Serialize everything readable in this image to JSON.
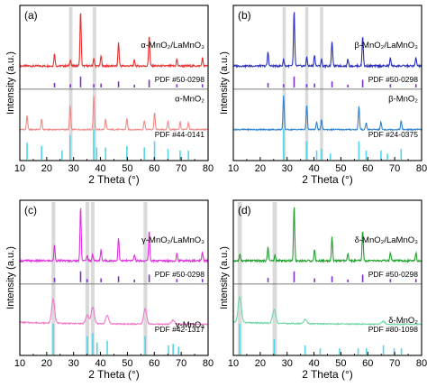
{
  "chart_data": [
    {
      "panel": "(a)",
      "type": "line",
      "xlabel": "2 Theta (°)",
      "ylabel": "Intensity (a.u.)",
      "xlim": [
        10,
        80
      ],
      "xticks": [
        "10",
        "20",
        "30",
        "40",
        "50",
        "60",
        "70",
        "80"
      ],
      "highlight_bands": [
        [
          28.3,
          29.6
        ],
        [
          37.1,
          38.4
        ]
      ],
      "series": [
        {
          "name": "α-MnO₂/LaMnO₃",
          "color": "#e8312f",
          "role": "top",
          "peaks": [
            [
              22.9,
              0.22
            ],
            [
              28.8,
              0.12
            ],
            [
              32.6,
              1.0
            ],
            [
              37.5,
              0.14
            ],
            [
              40.2,
              0.18
            ],
            [
              46.7,
              0.42
            ],
            [
              52.6,
              0.1
            ],
            [
              58.1,
              0.55
            ],
            [
              68.4,
              0.12
            ],
            [
              77.9,
              0.14
            ]
          ]
        },
        {
          "name": "α-MnO₂",
          "color": "#f08a88",
          "role": "bottom",
          "peaks": [
            [
              12.7,
              0.42
            ],
            [
              18.1,
              0.3
            ],
            [
              28.7,
              0.72
            ],
            [
              37.5,
              0.98
            ],
            [
              41.9,
              0.3
            ],
            [
              49.8,
              0.33
            ],
            [
              56.3,
              0.28
            ],
            [
              60.1,
              0.5
            ],
            [
              65.1,
              0.25
            ],
            [
              69.6,
              0.24
            ],
            [
              72.7,
              0.2
            ]
          ]
        }
      ],
      "references": [
        {
          "name": "PDF #50-0298",
          "color": "#7b2fc9",
          "lines": [
            [
              22.9,
              0.4
            ],
            [
              28.8,
              0.3
            ],
            [
              32.6,
              1.0
            ],
            [
              37.5,
              0.3
            ],
            [
              40.2,
              0.35
            ],
            [
              46.7,
              0.55
            ],
            [
              52.6,
              0.25
            ],
            [
              58.1,
              0.7
            ],
            [
              68.4,
              0.3
            ],
            [
              77.9,
              0.3
            ]
          ]
        },
        {
          "name": "PDF #44-0141",
          "color": "#53d6e8",
          "lines": [
            [
              12.7,
              0.55
            ],
            [
              18.1,
              0.45
            ],
            [
              25.7,
              0.3
            ],
            [
              28.7,
              0.8
            ],
            [
              37.5,
              1.0
            ],
            [
              38.6,
              0.4
            ],
            [
              41.9,
              0.4
            ],
            [
              49.8,
              0.45
            ],
            [
              56.3,
              0.4
            ],
            [
              60.1,
              0.6
            ],
            [
              65.1,
              0.35
            ],
            [
              69.6,
              0.3
            ],
            [
              72.7,
              0.3
            ]
          ]
        }
      ]
    },
    {
      "panel": "(b)",
      "type": "line",
      "xlabel": "2 Theta (°)",
      "ylabel": "Intensity (a.u.)",
      "xlim": [
        10,
        80
      ],
      "xticks": [
        "10",
        "20",
        "30",
        "40",
        "50",
        "60",
        "70",
        "80"
      ],
      "highlight_bands": [
        [
          28.3,
          29.5
        ],
        [
          36.7,
          37.9
        ],
        [
          42.2,
          43.4
        ]
      ],
      "series": [
        {
          "name": "β-MnO₂/LaMnO₃",
          "color": "#2b2fbf",
          "role": "top",
          "peaks": [
            [
              22.9,
              0.25
            ],
            [
              28.7,
              0.12
            ],
            [
              32.6,
              1.0
            ],
            [
              37.3,
              0.15
            ],
            [
              40.2,
              0.2
            ],
            [
              42.8,
              0.12
            ],
            [
              46.7,
              0.45
            ],
            [
              52.6,
              0.12
            ],
            [
              58.1,
              0.55
            ],
            [
              68.4,
              0.14
            ],
            [
              77.9,
              0.15
            ]
          ]
        },
        {
          "name": "β-MnO₂",
          "color": "#2f82d0",
          "role": "bottom",
          "peaks": [
            [
              28.7,
              1.0
            ],
            [
              37.3,
              0.7
            ],
            [
              41.0,
              0.22
            ],
            [
              42.8,
              0.28
            ],
            [
              56.7,
              0.7
            ],
            [
              59.4,
              0.2
            ],
            [
              64.9,
              0.22
            ],
            [
              72.4,
              0.25
            ]
          ]
        }
      ],
      "references": [
        {
          "name": "PDF #50-0298",
          "color": "#7b2fc9",
          "lines": [
            [
              22.9,
              0.4
            ],
            [
              28.7,
              0.3
            ],
            [
              32.6,
              1.0
            ],
            [
              37.3,
              0.3
            ],
            [
              40.2,
              0.35
            ],
            [
              46.7,
              0.55
            ],
            [
              52.6,
              0.25
            ],
            [
              58.1,
              0.7
            ],
            [
              68.4,
              0.3
            ],
            [
              77.9,
              0.3
            ]
          ]
        },
        {
          "name": "PDF #24-0375",
          "color": "#53d6e8",
          "lines": [
            [
              28.7,
              1.0
            ],
            [
              37.3,
              0.6
            ],
            [
              41.0,
              0.3
            ],
            [
              42.8,
              0.35
            ],
            [
              46.1,
              0.2
            ],
            [
              56.7,
              0.6
            ],
            [
              59.4,
              0.3
            ],
            [
              64.9,
              0.3
            ],
            [
              67.3,
              0.2
            ],
            [
              72.4,
              0.35
            ]
          ]
        }
      ]
    },
    {
      "panel": "(c)",
      "type": "line",
      "xlabel": "2 Theta (°)",
      "ylabel": "Intensity (a.u.)",
      "xlim": [
        10,
        80
      ],
      "xticks": [
        "10",
        "20",
        "30",
        "40",
        "50",
        "60",
        "70",
        "80"
      ],
      "highlight_bands": [
        [
          21.8,
          23.2
        ],
        [
          34.4,
          35.8
        ],
        [
          36.4,
          37.8
        ],
        [
          56.0,
          57.4
        ]
      ],
      "series": [
        {
          "name": "γ-MnO₂/LaMnO₃",
          "color": "#e030e0",
          "role": "top",
          "peaks": [
            [
              22.9,
              0.28
            ],
            [
              32.6,
              1.0
            ],
            [
              35.0,
              0.1
            ],
            [
              37.1,
              0.12
            ],
            [
              40.2,
              0.2
            ],
            [
              46.7,
              0.42
            ],
            [
              52.6,
              0.12
            ],
            [
              58.1,
              0.55
            ],
            [
              68.4,
              0.14
            ],
            [
              77.9,
              0.15
            ]
          ]
        },
        {
          "name": "γ-MnO₂",
          "color": "#f07ac8",
          "role": "bottom",
          "peaks": [
            [
              22.4,
              0.7
            ],
            [
              35.1,
              0.25
            ],
            [
              37.1,
              0.5
            ],
            [
              42.5,
              0.25
            ],
            [
              56.6,
              0.45
            ],
            [
              67.0,
              0.12
            ]
          ]
        }
      ],
      "references": [
        {
          "name": "PDF #50-0298",
          "color": "#7b2fc9",
          "lines": [
            [
              22.9,
              0.4
            ],
            [
              32.6,
              1.0
            ],
            [
              35.0,
              0.3
            ],
            [
              40.2,
              0.35
            ],
            [
              46.7,
              0.55
            ],
            [
              52.6,
              0.25
            ],
            [
              58.1,
              0.7
            ],
            [
              68.4,
              0.3
            ],
            [
              77.9,
              0.3
            ]
          ]
        },
        {
          "name": "PDF #42-1317",
          "color": "#53d6e8",
          "lines": [
            [
              22.4,
              1.0
            ],
            [
              35.1,
              0.6
            ],
            [
              37.1,
              0.7
            ],
            [
              38.7,
              0.4
            ],
            [
              42.5,
              0.45
            ],
            [
              56.6,
              0.6
            ],
            [
              65.3,
              0.3
            ],
            [
              67.0,
              0.35
            ],
            [
              69.0,
              0.25
            ]
          ]
        }
      ]
    },
    {
      "panel": "(d)",
      "type": "line",
      "xlabel": "2 Theta (°)",
      "ylabel": "Intensity (a.u.)",
      "xlim": [
        10,
        80
      ],
      "xticks": [
        "10",
        "20",
        "30",
        "40",
        "50",
        "60",
        "70",
        "80"
      ],
      "highlight_bands": [
        [
          11.6,
          13.2
        ],
        [
          24.6,
          26.2
        ]
      ],
      "series": [
        {
          "name": "δ-MnO₂/LaMnO₃",
          "color": "#22a02e",
          "role": "top",
          "peaks": [
            [
              12.5,
              0.12
            ],
            [
              22.9,
              0.25
            ],
            [
              25.5,
              0.1
            ],
            [
              32.6,
              1.0
            ],
            [
              40.2,
              0.2
            ],
            [
              46.7,
              0.42
            ],
            [
              52.6,
              0.12
            ],
            [
              58.1,
              0.55
            ],
            [
              68.4,
              0.14
            ],
            [
              77.9,
              0.15
            ]
          ]
        },
        {
          "name": "δ-MnO₂",
          "color": "#6fd8a6",
          "role": "bottom",
          "peaks": [
            [
              12.4,
              0.75
            ],
            [
              25.2,
              0.4
            ],
            [
              36.7,
              0.12
            ],
            [
              65.8,
              0.08
            ]
          ]
        }
      ],
      "references": [
        {
          "name": "PDF #50-0298",
          "color": "#7b2fc9",
          "lines": [
            [
              22.9,
              0.4
            ],
            [
              32.6,
              1.0
            ],
            [
              40.2,
              0.35
            ],
            [
              46.7,
              0.55
            ],
            [
              52.6,
              0.25
            ],
            [
              58.1,
              0.7
            ],
            [
              68.4,
              0.3
            ],
            [
              77.9,
              0.3
            ]
          ]
        },
        {
          "name": "PDF #80-1098",
          "color": "#53d6e8",
          "lines": [
            [
              12.4,
              1.0
            ],
            [
              25.2,
              0.5
            ],
            [
              36.7,
              0.3
            ],
            [
              42.3,
              0.2
            ],
            [
              49.5,
              0.2
            ],
            [
              56.4,
              0.2
            ],
            [
              59.5,
              0.2
            ],
            [
              65.8,
              0.3
            ],
            [
              69.8,
              0.2
            ],
            [
              72.5,
              0.2
            ]
          ]
        }
      ]
    }
  ],
  "colors": {
    "band": "#d3d3d3",
    "axis": "#000000",
    "divider": "#555555"
  }
}
